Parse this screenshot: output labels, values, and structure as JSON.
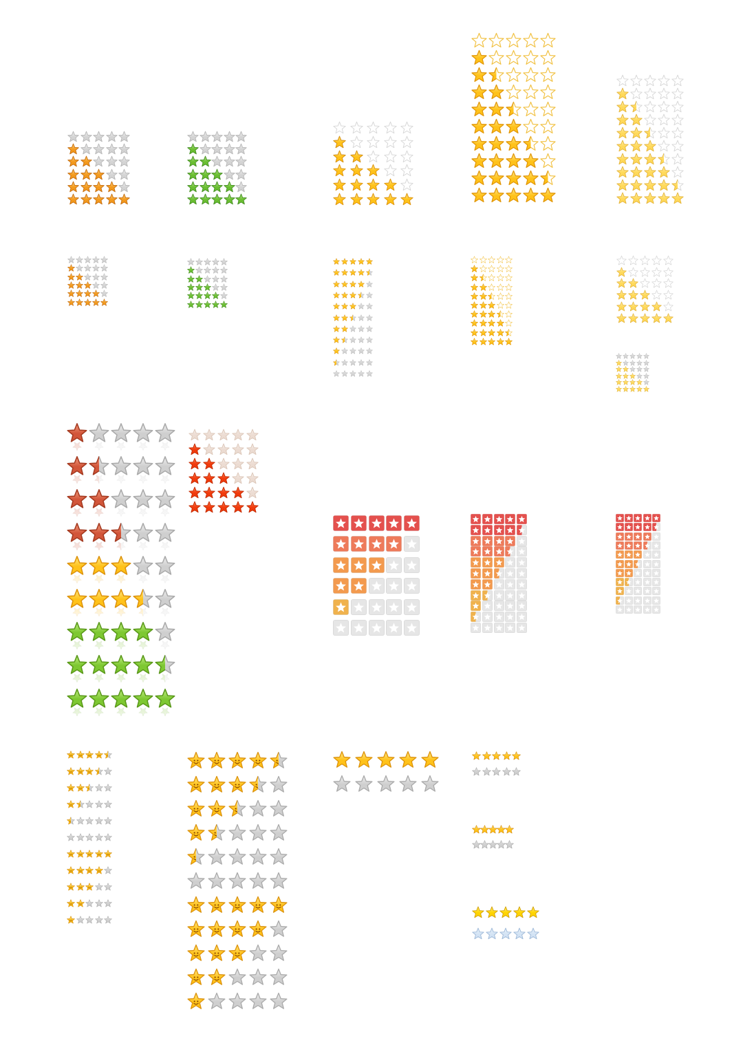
{
  "colors": {
    "orange": {
      "fill": "#f39a1e",
      "stroke": "#c86b08",
      "shine": "#ffd27a"
    },
    "gray": {
      "fill": "#d4d4d4",
      "stroke": "#b3b3b3",
      "shine": "#f1f1f1"
    },
    "green": {
      "fill": "#6bbf32",
      "stroke": "#3f8e1b",
      "shine": "#b6e588"
    },
    "gold": {
      "fill": "#ffc21a",
      "stroke": "#e09408",
      "shine": "#ffe98a"
    },
    "outline": {
      "fill": "#ffffff",
      "stroke": "#f1c040",
      "shine": "#ffffff"
    },
    "white": {
      "fill": "#ffffff",
      "stroke": "#d6d6d6",
      "shine": "#ffffff"
    },
    "darkgray": {
      "fill": "#8c8c8c",
      "stroke": "#666666",
      "shine": "#bdbdbd"
    },
    "pale": {
      "fill": "#fff3c4",
      "stroke": "#e8c766",
      "shine": "#fffbe6"
    },
    "lightgold": {
      "fill": "#ffd95a",
      "stroke": "#e8b73a",
      "shine": "#fff1ad"
    },
    "rust": {
      "fill": "#d2563a",
      "stroke": "#a6391f",
      "shine": "#f3a083"
    },
    "lime": {
      "fill": "#7ec832",
      "stroke": "#5a9a18",
      "shine": "#c3ee86"
    },
    "red": {
      "fill": "#f13a0c",
      "stroke": "#c52a00",
      "shine": "#ff7a4f"
    },
    "beige": {
      "fill": "#ecdcd2",
      "stroke": "#dbc6b8",
      "shine": "#f7eee8"
    },
    "silver": {
      "fill": "#cfcfcf",
      "stroke": "#a9a9a9",
      "shine": "#eeeeee"
    },
    "blue": {
      "fill": "#d3e3f4",
      "stroke": "#9db8d8",
      "shine": "#eef5fd"
    },
    "yellow": {
      "fill": "#ffd400",
      "stroke": "#d9a300",
      "shine": "#fff07a"
    },
    "tileRed": "#e4504d",
    "tileSalmon": "#ee7a5a",
    "tileOrange": "#f39a4e",
    "tileAmber": "#f0b24d",
    "tileGray": "#e6e6e6",
    "tileGrayBorder": "#d2d2d2"
  },
  "icons": [
    "star-icon",
    "half-star-icon",
    "star-tile-icon",
    "smiley-star-icon"
  ],
  "star_sets": [
    {
      "name": "orange-gray-small",
      "style": "star",
      "on": "orange",
      "off": "gray",
      "ratings": [
        0,
        1,
        2,
        3,
        4,
        5
      ]
    },
    {
      "name": "green-gray-small",
      "style": "star",
      "on": "green",
      "off": "gray",
      "ratings": [
        0,
        1,
        2,
        3,
        4,
        5
      ]
    },
    {
      "name": "gold-outline-medium",
      "style": "star",
      "on": "gold",
      "off": "white",
      "ratings": [
        0,
        1,
        2,
        3,
        4,
        5
      ],
      "firstOff": "darkgray"
    },
    {
      "name": "gold-outline-large",
      "style": "star",
      "on": "gold",
      "off": "outline",
      "ratings": [
        0,
        1,
        1.5,
        2,
        2.5,
        3,
        3.5,
        4,
        4.5,
        5
      ]
    },
    {
      "name": "pale-gold-large",
      "style": "star",
      "on": "lightgold",
      "off": "white",
      "ratings": [
        0,
        1,
        1.5,
        2,
        2.5,
        3,
        3.5,
        4,
        4.5,
        5
      ]
    },
    {
      "name": "orange-gray-tiny",
      "style": "star",
      "on": "orange",
      "off": "gray",
      "ratings": [
        0,
        1,
        2,
        3,
        4,
        5
      ]
    },
    {
      "name": "green-gray-tiny",
      "style": "star",
      "on": "green",
      "off": "gray",
      "ratings": [
        0,
        1,
        2,
        3,
        4,
        5
      ]
    },
    {
      "name": "gold-gray-tiny-list",
      "style": "star",
      "on": "gold",
      "off": "gray",
      "ratings": [
        5,
        4.5,
        4,
        3.5,
        3,
        2.5,
        2,
        1.5,
        1,
        0.5,
        0
      ]
    },
    {
      "name": "gold-outline-tiny",
      "style": "star",
      "on": "gold",
      "off": "outline",
      "ratings": [
        0,
        1,
        1.5,
        2,
        2.5,
        3,
        3.5,
        4,
        4.5,
        5
      ]
    },
    {
      "name": "pale-gold-medium",
      "style": "star",
      "on": "lightgold",
      "off": "white",
      "ratings": [
        0,
        1,
        2,
        3,
        4,
        5
      ]
    },
    {
      "name": "gold-gray-micro",
      "style": "star",
      "on": "lightgold",
      "off": "gray",
      "ratings": [
        0,
        1,
        2,
        3,
        4,
        5
      ]
    },
    {
      "name": "multicolor-glossy-large",
      "style": "star",
      "ratings": [
        1,
        1.5,
        2,
        2.5,
        3,
        3.5,
        4,
        4.5,
        5
      ],
      "rowColors": [
        "rust",
        "rust",
        "rust",
        "rust",
        "gold",
        "gold",
        "lime",
        "lime",
        "lime"
      ],
      "off": "silver"
    },
    {
      "name": "red-beige-medium",
      "style": "star",
      "on": "red",
      "off": "beige",
      "ratings": [
        0,
        1,
        2,
        3,
        4,
        5
      ]
    },
    {
      "name": "tile-large",
      "style": "tile",
      "ratings": [
        5,
        4,
        3,
        2,
        1,
        0
      ],
      "rowColors": [
        "tileRed",
        "tileSalmon",
        "tileOrange",
        "tileOrange",
        "tileAmber",
        "tileGray"
      ]
    },
    {
      "name": "tile-medium",
      "style": "tile",
      "ratings": [
        5,
        4.5,
        4,
        3.5,
        3,
        2.5,
        2,
        1.5,
        1,
        0.5,
        0
      ],
      "rowColors": [
        "tileRed",
        "tileRed",
        "tileSalmon",
        "tileSalmon",
        "tileOrange",
        "tileOrange",
        "tileOrange",
        "tileAmber",
        "tileAmber",
        "tileAmber",
        "tileGray"
      ]
    },
    {
      "name": "tile-small",
      "style": "tile",
      "ratings": [
        5,
        4.5,
        4,
        3.5,
        3,
        2.5,
        2,
        1.5,
        1,
        0.5,
        0
      ],
      "rowColors": [
        "tileRed",
        "tileRed",
        "tileSalmon",
        "tileSalmon",
        "tileOrange",
        "tileOrange",
        "tileOrange",
        "tileAmber",
        "tileAmber",
        "tileAmber",
        "tileGray"
      ]
    },
    {
      "name": "smiley-tiny-list",
      "style": "smiley",
      "on": "gold",
      "off": "silver",
      "ratings": [
        4.5,
        3.5,
        2.5,
        1.5,
        0.5,
        0,
        5,
        4,
        3,
        2,
        1
      ]
    },
    {
      "name": "smiley-large",
      "style": "smiley",
      "on": "gold",
      "off": "silver",
      "ratings": [
        4.5,
        3.5,
        2.5,
        1.5,
        0.5,
        0,
        5,
        4,
        3,
        2,
        1
      ]
    },
    {
      "name": "gold-silver-pair",
      "style": "star",
      "on": "gold",
      "off": "silver",
      "ratings": [
        5,
        0
      ]
    },
    {
      "name": "tiny-pair-1",
      "style": "star",
      "on": "gold",
      "off": "silver",
      "ratings": [
        5,
        0
      ]
    },
    {
      "name": "tiny-pair-2",
      "style": "star",
      "on": "gold",
      "off": "silver",
      "ratings": [
        5,
        0
      ]
    },
    {
      "name": "yellow-blue-pair",
      "style": "star",
      "on": "yellow",
      "off": "blue",
      "ratings": [
        5,
        0
      ]
    }
  ]
}
